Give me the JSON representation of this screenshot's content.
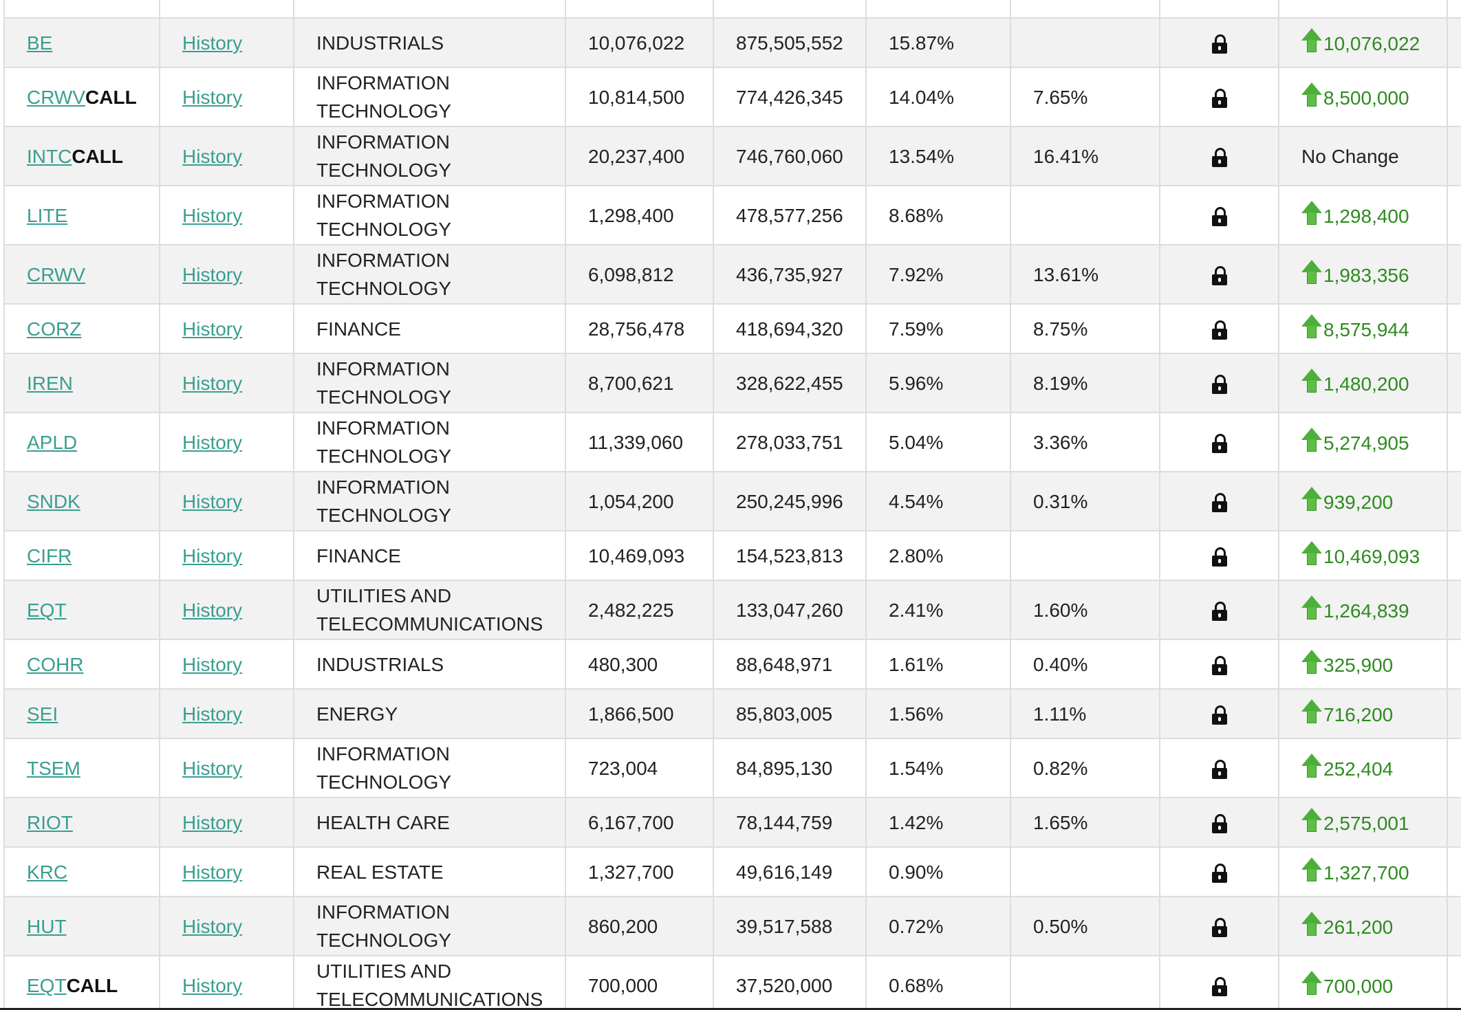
{
  "table": {
    "history_label": "History",
    "call_label": "CALL",
    "no_change_label": "No Change",
    "rows": [
      {
        "ticker": "BE",
        "call": false,
        "sector": "INDUSTRIALS",
        "shares": "10,076,022",
        "value": "875,505,552",
        "pct_portfolio": "15.87%",
        "pct_owned": "",
        "change": "10,076,022",
        "direction": "up"
      },
      {
        "ticker": "CRWV",
        "call": true,
        "sector": "INFORMATION TECHNOLOGY",
        "shares": "10,814,500",
        "value": "774,426,345",
        "pct_portfolio": "14.04%",
        "pct_owned": "7.65%",
        "change": "8,500,000",
        "direction": "up"
      },
      {
        "ticker": "INTC",
        "call": true,
        "sector": "INFORMATION TECHNOLOGY",
        "shares": "20,237,400",
        "value": "746,760,060",
        "pct_portfolio": "13.54%",
        "pct_owned": "16.41%",
        "change": "",
        "direction": "none"
      },
      {
        "ticker": "LITE",
        "call": false,
        "sector": "INFORMATION TECHNOLOGY",
        "shares": "1,298,400",
        "value": "478,577,256",
        "pct_portfolio": "8.68%",
        "pct_owned": "",
        "change": "1,298,400",
        "direction": "up"
      },
      {
        "ticker": "CRWV",
        "call": false,
        "sector": "INFORMATION TECHNOLOGY",
        "shares": "6,098,812",
        "value": "436,735,927",
        "pct_portfolio": "7.92%",
        "pct_owned": "13.61%",
        "change": "1,983,356",
        "direction": "up"
      },
      {
        "ticker": "CORZ",
        "call": false,
        "sector": "FINANCE",
        "shares": "28,756,478",
        "value": "418,694,320",
        "pct_portfolio": "7.59%",
        "pct_owned": "8.75%",
        "change": "8,575,944",
        "direction": "up"
      },
      {
        "ticker": "IREN",
        "call": false,
        "sector": "INFORMATION TECHNOLOGY",
        "shares": "8,700,621",
        "value": "328,622,455",
        "pct_portfolio": "5.96%",
        "pct_owned": "8.19%",
        "change": "1,480,200",
        "direction": "up"
      },
      {
        "ticker": "APLD",
        "call": false,
        "sector": "INFORMATION TECHNOLOGY",
        "shares": "11,339,060",
        "value": "278,033,751",
        "pct_portfolio": "5.04%",
        "pct_owned": "3.36%",
        "change": "5,274,905",
        "direction": "up"
      },
      {
        "ticker": "SNDK",
        "call": false,
        "sector": "INFORMATION TECHNOLOGY",
        "shares": "1,054,200",
        "value": "250,245,996",
        "pct_portfolio": "4.54%",
        "pct_owned": "0.31%",
        "change": "939,200",
        "direction": "up"
      },
      {
        "ticker": "CIFR",
        "call": false,
        "sector": "FINANCE",
        "shares": "10,469,093",
        "value": "154,523,813",
        "pct_portfolio": "2.80%",
        "pct_owned": "",
        "change": "10,469,093",
        "direction": "up"
      },
      {
        "ticker": "EQT",
        "call": false,
        "sector": "UTILITIES AND TELECOMMUNICATIONS",
        "shares": "2,482,225",
        "value": "133,047,260",
        "pct_portfolio": "2.41%",
        "pct_owned": "1.60%",
        "change": "1,264,839",
        "direction": "up"
      },
      {
        "ticker": "COHR",
        "call": false,
        "sector": "INDUSTRIALS",
        "shares": "480,300",
        "value": "88,648,971",
        "pct_portfolio": "1.61%",
        "pct_owned": "0.40%",
        "change": "325,900",
        "direction": "up"
      },
      {
        "ticker": "SEI",
        "call": false,
        "sector": "ENERGY",
        "shares": "1,866,500",
        "value": "85,803,005",
        "pct_portfolio": "1.56%",
        "pct_owned": "1.11%",
        "change": "716,200",
        "direction": "up"
      },
      {
        "ticker": "TSEM",
        "call": false,
        "sector": "INFORMATION TECHNOLOGY",
        "shares": "723,004",
        "value": "84,895,130",
        "pct_portfolio": "1.54%",
        "pct_owned": "0.82%",
        "change": "252,404",
        "direction": "up"
      },
      {
        "ticker": "RIOT",
        "call": false,
        "sector": "HEALTH CARE",
        "shares": "6,167,700",
        "value": "78,144,759",
        "pct_portfolio": "1.42%",
        "pct_owned": "1.65%",
        "change": "2,575,001",
        "direction": "up"
      },
      {
        "ticker": "KRC",
        "call": false,
        "sector": "REAL ESTATE",
        "shares": "1,327,700",
        "value": "49,616,149",
        "pct_portfolio": "0.90%",
        "pct_owned": "",
        "change": "1,327,700",
        "direction": "up"
      },
      {
        "ticker": "HUT",
        "call": false,
        "sector": "INFORMATION TECHNOLOGY",
        "shares": "860,200",
        "value": "39,517,588",
        "pct_portfolio": "0.72%",
        "pct_owned": "0.50%",
        "change": "261,200",
        "direction": "up"
      },
      {
        "ticker": "EQT",
        "call": true,
        "sector": "UTILITIES AND TELECOMMUNICATIONS",
        "shares": "700,000",
        "value": "37,520,000",
        "pct_portfolio": "0.68%",
        "pct_owned": "",
        "change": "700,000",
        "direction": "up"
      }
    ]
  }
}
